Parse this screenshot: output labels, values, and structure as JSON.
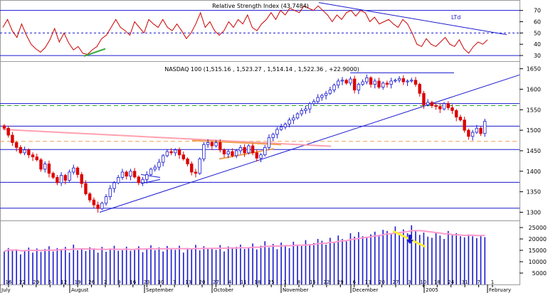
{
  "chart_data": [
    {
      "id": "rsi",
      "type": "line",
      "title": "Relative Strength Index (43.7484)",
      "ylim": [
        25,
        78
      ],
      "yticks": [
        30,
        40,
        50,
        60,
        70
      ],
      "reference_lines": [
        30,
        50,
        70
      ],
      "annotation": "LTd",
      "series": [
        {
          "values": [
            55,
            62,
            52,
            46,
            58,
            48,
            40,
            36,
            33,
            37,
            44,
            54,
            42,
            50,
            41,
            35,
            38,
            32,
            31,
            35,
            38,
            45,
            48,
            55,
            62,
            55,
            52,
            48,
            60,
            55,
            50,
            62,
            58,
            55,
            62,
            55,
            52,
            58,
            52,
            45,
            50,
            58,
            68,
            55,
            60,
            52,
            48,
            52,
            60,
            55,
            62,
            58,
            66,
            55,
            52,
            58,
            62,
            68,
            62,
            70,
            66,
            72,
            70,
            68,
            74,
            72,
            70,
            74,
            70,
            66,
            60,
            66,
            62,
            68,
            70,
            65,
            70,
            68,
            60,
            64,
            58,
            60,
            62,
            58,
            55,
            62,
            58,
            50,
            40,
            38,
            45,
            40,
            38,
            42,
            46,
            40,
            38,
            44,
            36,
            32,
            38,
            42,
            40,
            44
          ]
        }
      ]
    },
    {
      "id": "price",
      "type": "candlestick",
      "title": "NASDAQ 100 (1,515.16 , 1,523.27 , 1,514.14 , 1,522.36 , +22.9000)",
      "ylim": [
        1280,
        1665
      ],
      "yticks": [
        1300,
        1350,
        1400,
        1450,
        1500,
        1550,
        1600,
        1650
      ],
      "reference_lines": [
        1310,
        1373,
        1453,
        1510,
        1565
      ],
      "closes": [
        1505,
        1488,
        1470,
        1458,
        1445,
        1452,
        1440,
        1435,
        1428,
        1405,
        1418,
        1395,
        1385,
        1372,
        1390,
        1378,
        1398,
        1408,
        1392,
        1370,
        1345,
        1330,
        1318,
        1309,
        1322,
        1338,
        1358,
        1372,
        1385,
        1398,
        1388,
        1400,
        1386,
        1372,
        1380,
        1392,
        1405,
        1410,
        1422,
        1438,
        1448,
        1445,
        1452,
        1440,
        1430,
        1418,
        1398,
        1395,
        1430,
        1465,
        1470,
        1462,
        1470,
        1452,
        1442,
        1448,
        1438,
        1450,
        1458,
        1445,
        1462,
        1445,
        1432,
        1440,
        1458,
        1482,
        1490,
        1502,
        1508,
        1515,
        1525,
        1530,
        1540,
        1548,
        1552,
        1565,
        1570,
        1580,
        1585,
        1590,
        1598,
        1610,
        1620,
        1622,
        1615,
        1625,
        1598,
        1612,
        1618,
        1628,
        1612,
        1620,
        1605,
        1615,
        1612,
        1620,
        1622,
        1626,
        1618,
        1620,
        1622,
        1612,
        1590,
        1562,
        1568,
        1560,
        1558,
        1552,
        1565,
        1555,
        1548,
        1532,
        1525,
        1500,
        1485,
        1495,
        1505,
        1492,
        1522
      ],
      "tick_labels": [
        "16",
        "22",
        "29",
        "5",
        "12",
        "19",
        "26",
        "2",
        "9",
        "16",
        "23",
        "30",
        "7",
        "13",
        "20",
        "27",
        "4",
        "11",
        "18",
        "25",
        "1",
        "8",
        "15",
        "22",
        "29",
        "6",
        "13",
        "20",
        "27",
        "3",
        "10",
        "18",
        "24",
        "31",
        "7",
        "1"
      ],
      "month_labels": [
        "July",
        "August",
        "September",
        "October",
        "November",
        "December",
        "2005",
        "February"
      ]
    },
    {
      "id": "volume",
      "type": "bar",
      "ylim": [
        0,
        27500
      ],
      "yticks": [
        5000,
        10000,
        15000,
        20000,
        25000
      ],
      "ytick_labels": [
        "5000",
        "10000",
        "15000",
        "20000",
        "25000"
      ],
      "values": [
        14500,
        16000,
        14800,
        15500,
        13200,
        15000,
        16200,
        14000,
        15800,
        14300,
        15600,
        16800,
        14500,
        16000,
        15000,
        16500,
        14000,
        17500,
        15000,
        15800,
        14700,
        16300,
        15300,
        14000,
        16500,
        14400,
        15800,
        17000,
        14800,
        15000,
        16600,
        14800,
        15500,
        16800,
        14200,
        15800,
        17200,
        15000,
        16300,
        14500,
        16900,
        15400,
        15200,
        17000,
        14000,
        16000,
        15500,
        17400,
        15000,
        16800,
        15800,
        16000,
        15200,
        17300,
        14500,
        16700,
        15800,
        16500,
        17500,
        15600,
        16300,
        18000,
        15400,
        17000,
        19000,
        16200,
        17800,
        15500,
        18400,
        17100,
        16000,
        18800,
        17200,
        16900,
        19500,
        17500,
        18200,
        20000,
        19200,
        17500,
        20500,
        18400,
        21500,
        20000,
        19000,
        22500,
        21000,
        23000,
        21200,
        20500,
        22000,
        23200,
        21800,
        24000,
        23500,
        22400,
        25500,
        23000,
        24200,
        22500,
        26000,
        23400,
        21800,
        22800,
        21000,
        20500,
        22700,
        21500,
        20000,
        23500,
        21700,
        22500,
        21200,
        20700,
        22000,
        21200,
        20400,
        21500,
        20800
      ]
    }
  ]
}
